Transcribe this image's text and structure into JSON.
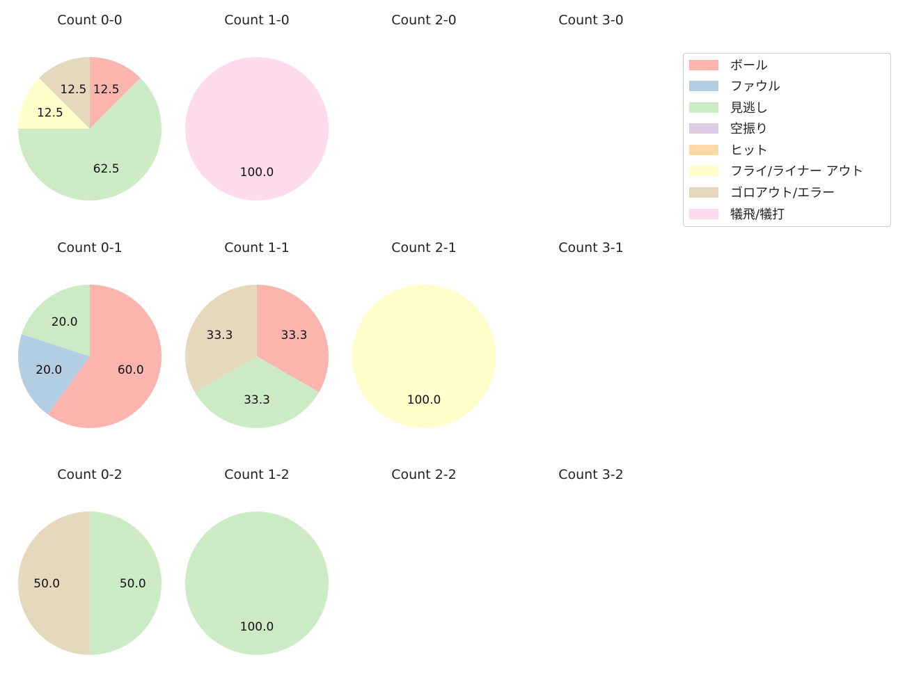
{
  "chart_data": {
    "type": "pie",
    "title": "",
    "categories": [
      "ボール",
      "ファウル",
      "見逃し",
      "空振り",
      "ヒット",
      "フライ/ライナー アウト",
      "ゴロアウト/エラー",
      "犠飛/犠打"
    ],
    "colors": [
      "#fbb4ae",
      "#b3cde3",
      "#ccebc5",
      "#decbe4",
      "#fed9a6",
      "#ffffcc",
      "#e5d8bd",
      "#fddaec"
    ],
    "start_angle": 90,
    "clockwise": true,
    "panels": [
      {
        "title": "Count 0-0",
        "row": 0,
        "col": 0,
        "values": [
          12.5,
          0,
          62.5,
          0,
          0,
          12.5,
          12.5,
          0
        ]
      },
      {
        "title": "Count 1-0",
        "row": 0,
        "col": 1,
        "values": [
          0,
          0,
          0,
          0,
          0,
          0,
          0,
          100.0
        ]
      },
      {
        "title": "Count 2-0",
        "row": 0,
        "col": 2,
        "values": []
      },
      {
        "title": "Count 3-0",
        "row": 0,
        "col": 3,
        "values": []
      },
      {
        "title": "Count 0-1",
        "row": 1,
        "col": 0,
        "values": [
          60.0,
          20.0,
          20.0,
          0,
          0,
          0,
          0,
          0
        ]
      },
      {
        "title": "Count 1-1",
        "row": 1,
        "col": 1,
        "values": [
          33.3,
          0,
          33.3,
          0,
          0,
          0,
          33.3,
          0
        ]
      },
      {
        "title": "Count 2-1",
        "row": 1,
        "col": 2,
        "values": [
          0,
          0,
          0,
          0,
          0,
          100.0,
          0,
          0
        ]
      },
      {
        "title": "Count 3-1",
        "row": 1,
        "col": 3,
        "values": []
      },
      {
        "title": "Count 0-2",
        "row": 2,
        "col": 0,
        "values": [
          0,
          0,
          50.0,
          0,
          0,
          0,
          50.0,
          0
        ]
      },
      {
        "title": "Count 1-2",
        "row": 2,
        "col": 1,
        "values": [
          0,
          0,
          100.0,
          0,
          0,
          0,
          0,
          0
        ]
      },
      {
        "title": "Count 2-2",
        "row": 2,
        "col": 2,
        "values": []
      },
      {
        "title": "Count 3-2",
        "row": 2,
        "col": 3,
        "values": []
      }
    ],
    "legend_position": "upper right"
  },
  "legend": {
    "items": [
      {
        "label": "ボール",
        "color": "#fbb4ae"
      },
      {
        "label": "ファウル",
        "color": "#b3cde3"
      },
      {
        "label": "見逃し",
        "color": "#ccebc5"
      },
      {
        "label": "空振り",
        "color": "#decbe4"
      },
      {
        "label": "ヒット",
        "color": "#fed9a6"
      },
      {
        "label": "フライ/ライナー アウト",
        "color": "#ffffcc"
      },
      {
        "label": "ゴロアウト/エラー",
        "color": "#e5d8bd"
      },
      {
        "label": "犠飛/犠打",
        "color": "#fddaec"
      }
    ]
  }
}
